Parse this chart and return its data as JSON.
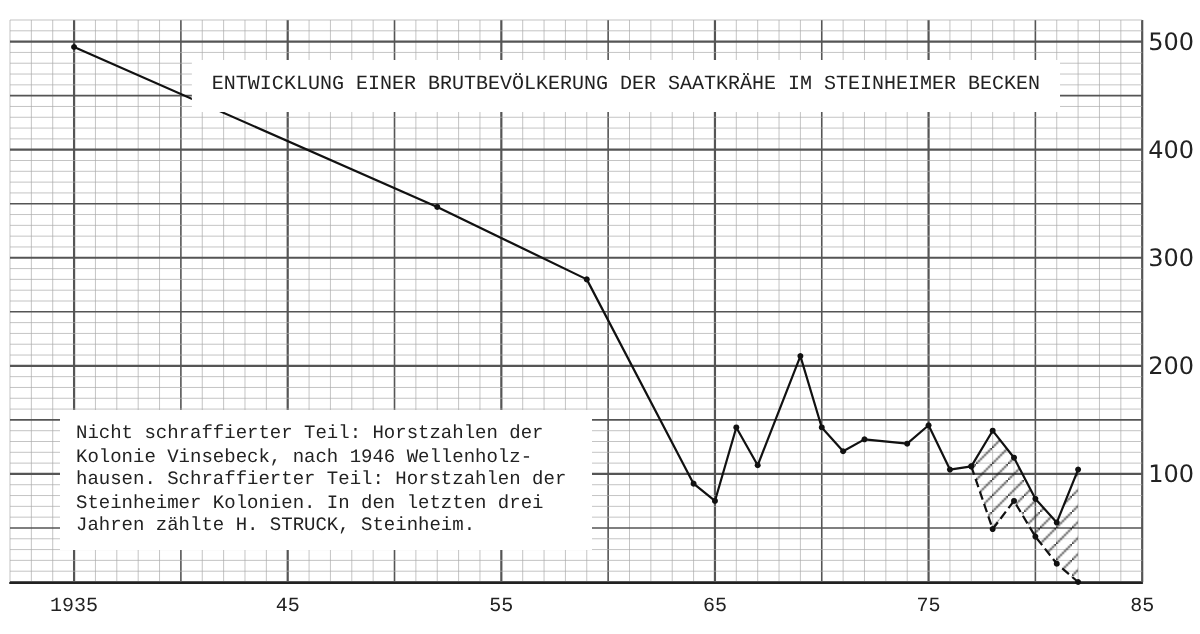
{
  "chart_data": {
    "type": "line",
    "title": "ENTWICKLUNG EINER BRUTBEVÖLKERUNG DER SAATKRÄHE IM STEINHEIMER BECKEN",
    "annotations": [
      "Nicht schraffierter Teil: Horstzahlen der Kolonie Vinsebeck, nach 1946 Wellenholz-hausen. Schraffierter Teil: Horstzahlen der Steinheimer Kolonien. In den letzten drei Jahren zählte H. STRUCK, Steinheim."
    ],
    "x": [
      1935,
      1952,
      1959,
      1964,
      1965,
      1966,
      1967,
      1969,
      1970,
      1971,
      1972,
      1974,
      1975,
      1976,
      1977,
      1978,
      1979,
      1980,
      1981,
      1982
    ],
    "series": [
      {
        "color": "#111111",
        "values": [
          495,
          347,
          280,
          91,
          75,
          143,
          108,
          209,
          143,
          121,
          132,
          128,
          145,
          104,
          107,
          140,
          115,
          77,
          55,
          104
        ],
        "lower": [
          null,
          null,
          null,
          null,
          null,
          null,
          null,
          null,
          null,
          null,
          null,
          null,
          null,
          null,
          107,
          49,
          75,
          42,
          17,
          0
        ],
        "upper": [
          null,
          null,
          null,
          null,
          null,
          null,
          null,
          null,
          null,
          null,
          null,
          null,
          null,
          null,
          107,
          140,
          115,
          77,
          55,
          104
        ]
      },
      {
        "color": "#111111",
        "x": [
          1977,
          1978,
          1979,
          1980,
          1981,
          1982
        ],
        "values": [
          107,
          49,
          75,
          42,
          17,
          0
        ],
        "line_style": "dashed"
      }
    ],
    "xlim": [
      1932,
      1985
    ],
    "ylim": [
      0,
      520
    ],
    "xticks": [
      {
        "value": 1935,
        "label": "1935"
      },
      {
        "value": 1945,
        "label": "45"
      },
      {
        "value": 1955,
        "label": "55"
      },
      {
        "value": 1965,
        "label": "65"
      },
      {
        "value": 1975,
        "label": "75"
      },
      {
        "value": 1985,
        "label": "85"
      }
    ],
    "yticks": [
      100,
      200,
      300,
      400,
      500
    ],
    "grid": true,
    "marker": "circle",
    "line_style": "solid"
  }
}
